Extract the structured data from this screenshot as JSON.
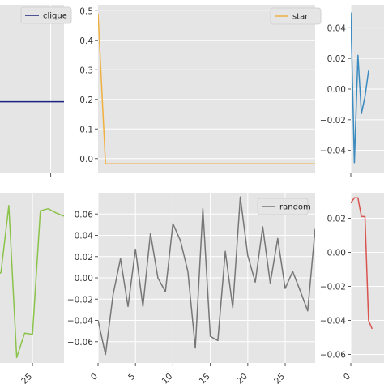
{
  "chart_data": [
    {
      "type": "line",
      "panel": "top-left",
      "legend": {
        "entries": [
          "clique"
        ],
        "placement": "top-right"
      },
      "series": [
        {
          "name": "clique",
          "color": "#1a237e",
          "x": [
            0,
            29
          ],
          "y": [
            -0.009,
            -0.009
          ]
        }
      ],
      "xlim": [
        0,
        29
      ],
      "ylim": [
        -0.06,
        0.06
      ],
      "xticks": [
        25
      ],
      "xtick_labels": [],
      "yticks": [],
      "ytick_labels": [],
      "grid": true
    },
    {
      "type": "line",
      "panel": "top-middle",
      "legend": {
        "entries": [
          "star"
        ],
        "placement": "top-right"
      },
      "series": [
        {
          "name": "star",
          "color": "#f0b040",
          "x": [
            0,
            1,
            2,
            3,
            4,
            5,
            6,
            7,
            8,
            9,
            10,
            11,
            12,
            13,
            14,
            15,
            16,
            17,
            18,
            19,
            20,
            21,
            22,
            23,
            24,
            25,
            26,
            27,
            28,
            29
          ],
          "y": [
            0.49,
            -0.018,
            -0.018,
            -0.018,
            -0.018,
            -0.018,
            -0.018,
            -0.018,
            -0.018,
            -0.018,
            -0.018,
            -0.018,
            -0.018,
            -0.018,
            -0.018,
            -0.018,
            -0.018,
            -0.018,
            -0.018,
            -0.018,
            -0.018,
            -0.018,
            -0.018,
            -0.018,
            -0.018,
            -0.018,
            -0.018,
            -0.018,
            -0.018,
            -0.018
          ]
        }
      ],
      "xlim": [
        0,
        29
      ],
      "ylim": [
        -0.05,
        0.52
      ],
      "yticks": [
        0.0,
        0.1,
        0.2,
        0.3,
        0.4,
        0.5
      ],
      "ytick_labels": [
        "0.0",
        "0.1",
        "0.2",
        "0.3",
        "0.4",
        "0.5"
      ],
      "xticks": [],
      "xtick_labels": [],
      "grid": true
    },
    {
      "type": "line",
      "panel": "top-right",
      "series": [
        {
          "name": "",
          "color": "#3a8bc0",
          "x": [
            0,
            1,
            2,
            3,
            4,
            5
          ],
          "y": [
            0.05,
            -0.048,
            0.022,
            -0.016,
            -0.005,
            0.012
          ]
        }
      ],
      "xlim": [
        0,
        29
      ],
      "ylim": [
        -0.055,
        0.055
      ],
      "yticks": [
        -0.04,
        -0.02,
        0.0,
        0.02,
        0.04
      ],
      "ytick_labels": [
        "−0.04",
        "−0.02",
        "0.00",
        "0.02",
        "0.04"
      ],
      "xticks": [
        0
      ],
      "xtick_labels": [],
      "grid": true
    },
    {
      "type": "line",
      "panel": "bottom-left",
      "series": [
        {
          "name": "",
          "color": "#8bc34a",
          "x": [
            19,
            20,
            21,
            22,
            23,
            24,
            25,
            26,
            27,
            28,
            29
          ],
          "y": [
            -0.01,
            0.0,
            0.005,
            0.068,
            -0.075,
            -0.052,
            -0.053,
            0.063,
            0.065,
            0.061,
            0.058
          ]
        }
      ],
      "xlim": [
        19.85,
        29
      ],
      "ylim": [
        -0.08,
        0.08
      ],
      "xticks": [
        25
      ],
      "xtick_labels": [
        "25"
      ],
      "yticks": [],
      "ytick_labels": [],
      "grid": true
    },
    {
      "type": "line",
      "panel": "bottom-middle",
      "legend": {
        "entries": [
          "random"
        ],
        "placement": "top-right"
      },
      "series": [
        {
          "name": "random",
          "color": "#777777",
          "x": [
            0,
            1,
            2,
            3,
            4,
            5,
            6,
            7,
            8,
            9,
            10,
            11,
            12,
            13,
            14,
            15,
            16,
            17,
            18,
            19,
            20,
            21,
            22,
            23,
            24,
            25,
            26,
            27,
            28,
            29
          ],
          "y": [
            -0.04,
            -0.072,
            -0.016,
            0.018,
            -0.027,
            0.027,
            -0.027,
            0.042,
            0.0,
            -0.013,
            0.051,
            0.035,
            0.006,
            -0.066,
            0.065,
            -0.055,
            -0.059,
            0.025,
            -0.028,
            0.076,
            0.021,
            -0.004,
            0.048,
            -0.005,
            0.037,
            -0.01,
            0.006,
            -0.012,
            -0.031,
            0.046
          ]
        }
      ],
      "xlim": [
        0,
        29
      ],
      "ylim": [
        -0.08,
        0.08
      ],
      "xticks": [
        0,
        5,
        10,
        15,
        20,
        25
      ],
      "xtick_labels": [
        "0",
        "5",
        "10",
        "15",
        "20",
        "25"
      ],
      "yticks": [
        -0.06,
        -0.04,
        -0.02,
        0.0,
        0.02,
        0.04,
        0.06
      ],
      "ytick_labels": [
        "−0.06",
        "−0.04",
        "−0.02",
        "0.00",
        "0.02",
        "0.04",
        "0.06"
      ],
      "grid": true
    },
    {
      "type": "line",
      "panel": "bottom-right",
      "series": [
        {
          "name": "",
          "color": "#d9534f",
          "x": [
            0,
            1,
            2,
            3,
            4,
            5,
            6
          ],
          "y": [
            0.029,
            0.032,
            0.032,
            0.021,
            0.021,
            -0.04,
            -0.045
          ]
        }
      ],
      "xlim": [
        0,
        29
      ],
      "ylim": [
        -0.065,
        0.035
      ],
      "yticks": [
        -0.06,
        -0.04,
        -0.02,
        0.0,
        0.02
      ],
      "ytick_labels": [
        "−0.06",
        "−0.04",
        "−0.02",
        "0.00",
        "0.02"
      ],
      "xticks": [
        0
      ],
      "xtick_labels": [
        "0"
      ],
      "grid": true
    }
  ]
}
